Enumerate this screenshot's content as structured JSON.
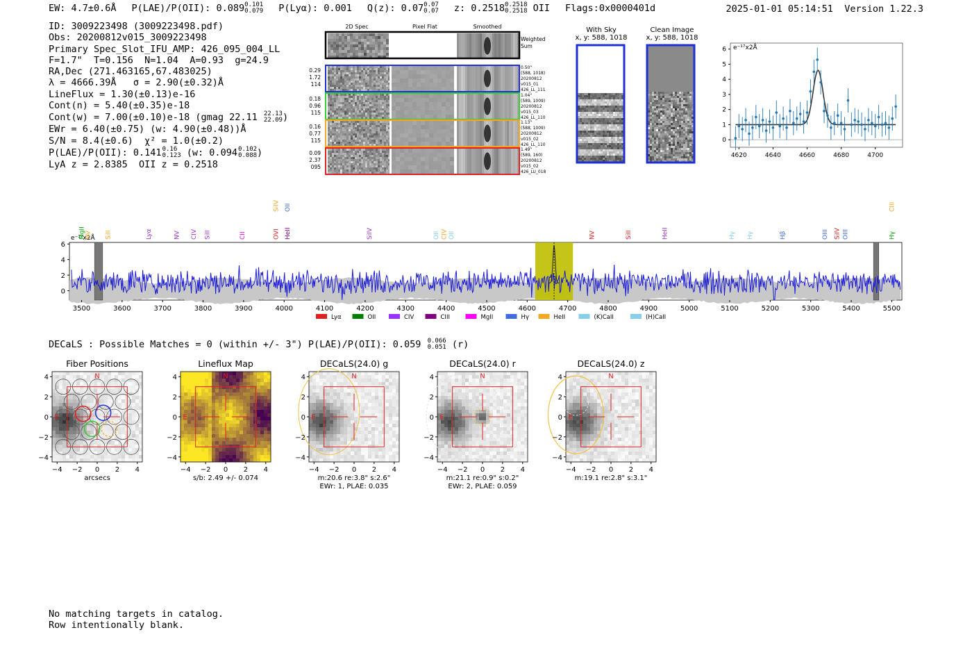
{
  "header": {
    "ew": "EW: 4.7±0.6Å",
    "plae_label": "P(LAE)/P(OII): 0.089",
    "plae_hi": "0.101",
    "plae_lo": "0.079",
    "plya": "P(Lyα): 0.001",
    "q_label": "Q(z): 0.07",
    "q_hi": "0.07",
    "q_lo": "0.07",
    "z_label": "z: 0.2518",
    "z_hi": "0.2518",
    "z_lo": "0.2518",
    "z_line": "OII",
    "flags": "Flags:0x0000401d",
    "timestamp": "2025-01-01 05:14:51",
    "version": "Version 1.22.3"
  },
  "info": {
    "id": "ID: 3009223498 (3009223498.pdf)",
    "obs": "Obs: 20200812v015_3009223498",
    "primary": "Primary Spec_Slot_IFU_AMP: 426_095_004_LL",
    "fwhm": "F=1.7\"  T=0.156  N=1.04  A=0.93  g=24.9",
    "radec": "RA,Dec (271.463165,67.483025)",
    "wave": "λ = 4666.39Å   σ = 2.90(±0.32)Å",
    "lineflux": "LineFlux = 1.30(±0.13)e-16",
    "contn": "Cont(n) = 5.40(±0.35)e-18",
    "contw": "Cont(w) = 7.00(±0.10)e-18 (gmag 22.11",
    "contw_hi": "22.13",
    "contw_lo": "22.09",
    "contw_end": ")",
    "ewr": "EWr = 6.40(±0.75) (w: 4.90(±0.48))Å",
    "sn": "S/N = 8.4(±0.6)  χ² = 1.0(±0.2)",
    "plae": "P(LAE)/P(OII): 0.141",
    "plae_hi": "0.16",
    "plae_lo": "0.123",
    "plae_w": "(w: 0.094",
    "plae_w_hi": "0.102",
    "plae_w_lo": "0.088",
    "plae_w_end": ")",
    "z": "LyA z = 2.8385  OII z = 0.2518"
  },
  "fiber_cutouts": {
    "headers": [
      "2D Spec",
      "Pixel Flat",
      "Smoothed"
    ],
    "weighted_label": "Weighted Sum",
    "rows": [
      {
        "stats": [
          "0.29",
          "1.72",
          "114"
        ],
        "info": [
          "0.50\"",
          "(588, 1018)",
          "20200812",
          "v015_01",
          "426_LL_111"
        ],
        "color": "#1f2fd6"
      },
      {
        "stats": [
          "0.18",
          "0.96",
          "115"
        ],
        "info": [
          "1.04\"",
          "(589, 1009)",
          "20200812",
          "v015_03",
          "426_LL_110"
        ],
        "color": "#33cc33"
      },
      {
        "stats": [
          "0.16",
          "0.77",
          "115"
        ],
        "info": [
          "1.13\"",
          "(588, 1009)",
          "20200812",
          "v015_02",
          "426_LL_110"
        ],
        "color": "#f5a623"
      },
      {
        "stats": [
          "0.09",
          "2.37",
          "095"
        ],
        "info": [
          "1.49\"",
          "(589, 160)",
          "20200812",
          "v015_02",
          "426_LU_018"
        ],
        "color": "#e02020"
      }
    ]
  },
  "sky": {
    "with_sky_title": "With Sky",
    "with_sky_coords": "x, y: 588, 1018",
    "clean_title": "Clean Image",
    "clean_coords": "x, y: 588, 1018"
  },
  "chart_data": [
    {
      "type": "scatter",
      "title": "",
      "ylabel_unit": "e⁻¹⁷x2Å",
      "xlim": [
        4615,
        4716
      ],
      "ylim": [
        -0.5,
        6.4
      ],
      "xticks": [
        4620,
        4640,
        4660,
        4680,
        4700
      ],
      "yticks": [
        0,
        1,
        2,
        3,
        4,
        5,
        6
      ],
      "data_x": [
        4618,
        4620,
        4622,
        4624,
        4626,
        4628,
        4630,
        4632,
        4634,
        4636,
        4638,
        4640,
        4642,
        4644,
        4646,
        4648,
        4650,
        4652,
        4654,
        4656,
        4658,
        4660,
        4662,
        4664,
        4666,
        4668,
        4670,
        4672,
        4674,
        4676,
        4678,
        4680,
        4682,
        4684,
        4686,
        4688,
        4690,
        4692,
        4694,
        4696,
        4698,
        4700,
        4702,
        4704,
        4706,
        4708,
        4710,
        4712
      ],
      "data_y": [
        0.1,
        0.9,
        0.7,
        1.3,
        0.4,
        0.8,
        1.5,
        0.9,
        1.3,
        0.6,
        1.2,
        0.8,
        1.8,
        0.9,
        1.4,
        0.8,
        1.9,
        1.1,
        1.4,
        1.7,
        1.2,
        1.8,
        3.2,
        4.5,
        5.3,
        3.8,
        1.9,
        1.6,
        0.8,
        1.1,
        1.6,
        1.1,
        0.7,
        2.6,
        1.0,
        1.3,
        1.2,
        1.0,
        0.7,
        1.3,
        1.1,
        0.9,
        1.5,
        1.0,
        1.1,
        0.8,
        1.4,
        2.2
      ],
      "error": 0.8,
      "model": {
        "type": "gaussian",
        "center": 4666.4,
        "sigma": 2.9,
        "amplitude": 3.6,
        "baseline": 1.0
      }
    },
    {
      "type": "line",
      "title": "",
      "ylabel_unit": "e⁻¹⁷x2Å",
      "xlim": [
        3470,
        5525
      ],
      "ylim": [
        -1.2,
        6.2
      ],
      "xticks": [
        3500,
        3600,
        3700,
        3800,
        3900,
        4000,
        4100,
        4200,
        4300,
        4400,
        4500,
        4600,
        4700,
        4800,
        4900,
        5000,
        5100,
        5200,
        5300,
        5400,
        5500
      ],
      "yticks": [
        0,
        2,
        4,
        6
      ],
      "highlight_band": [
        4620,
        4713
      ],
      "line_marker": 4666.4,
      "masked_bands": [
        [
          3532,
          3552
        ],
        [
          5455,
          5468
        ]
      ],
      "line_labels": [
        {
          "name": "MgII",
          "wave": 3500,
          "color": "#00a000",
          "tier": 1
        },
        {
          "name": "NV",
          "wave": 3515,
          "color": "#f5a623",
          "tier": 1
        },
        {
          "name": "SiII",
          "wave": 3565,
          "color": "#f5a623",
          "tier": 0
        },
        {
          "name": "Lyα",
          "wave": 3665,
          "color": "#9933cc",
          "tier": 0
        },
        {
          "name": "NV",
          "wave": 3735,
          "color": "#9933cc",
          "tier": 0
        },
        {
          "name": "CIV",
          "wave": 3777,
          "color": "#9933cc",
          "tier": 0
        },
        {
          "name": "SiII",
          "wave": 3810,
          "color": "#9933cc",
          "tier": 0
        },
        {
          "name": "CII",
          "wave": 3897,
          "color": "#e000e0",
          "tier": 0
        },
        {
          "name": "OVI",
          "wave": 3980,
          "color": "#e02020",
          "tier": 0
        },
        {
          "name": "SiIV",
          "wave": 3980,
          "color": "#f5a623",
          "tier": 2
        },
        {
          "name": "HeII",
          "wave": 4008,
          "color": "#800080",
          "tier": 0
        },
        {
          "name": "OII",
          "wave": 4008,
          "color": "#4169e1",
          "tier": 2
        },
        {
          "name": "SiIV",
          "wave": 4210,
          "color": "#9933cc",
          "tier": 0
        },
        {
          "name": "OII",
          "wave": 4375,
          "color": "#87ceeb",
          "tier": 0
        },
        {
          "name": "CIV",
          "wave": 4395,
          "color": "#f5a623",
          "tier": 0
        },
        {
          "name": "OII",
          "wave": 4413,
          "color": "#87ceeb",
          "tier": 0
        },
        {
          "name": "NV",
          "wave": 4760,
          "color": "#e02020",
          "tier": 0
        },
        {
          "name": "SiII",
          "wave": 4850,
          "color": "#e02020",
          "tier": 0
        },
        {
          "name": "HeII",
          "wave": 4940,
          "color": "#9933cc",
          "tier": 0
        },
        {
          "name": "Hγ",
          "wave": 5105,
          "color": "#87ceeb",
          "tier": 0
        },
        {
          "name": "Hγ",
          "wave": 5150,
          "color": "#87ceeb",
          "tier": 0
        },
        {
          "name": "Hβ",
          "wave": 5230,
          "color": "#4169e1",
          "tier": 0
        },
        {
          "name": "OIII",
          "wave": 5335,
          "color": "#4169e1",
          "tier": 0
        },
        {
          "name": "SiIV",
          "wave": 5365,
          "color": "#e02020",
          "tier": 0
        },
        {
          "name": "OIII",
          "wave": 5385,
          "color": "#4169e1",
          "tier": 0
        },
        {
          "name": "CIII",
          "wave": 5500,
          "color": "#f5a623",
          "tier": 2
        },
        {
          "name": "Hγ",
          "wave": 5500,
          "color": "#00a000",
          "tier": 0
        }
      ],
      "legend": [
        {
          "label": "Lyα",
          "color": "#e02020"
        },
        {
          "label": "OII",
          "color": "#008000"
        },
        {
          "label": "CIV",
          "color": "#9933ff"
        },
        {
          "label": "CIII",
          "color": "#800080"
        },
        {
          "label": "MgII",
          "color": "#ff00ff"
        },
        {
          "label": "Hγ",
          "color": "#4169e1"
        },
        {
          "label": "HeII",
          "color": "#f5a623"
        },
        {
          "label": "(K)CaII",
          "color": "#87ceeb"
        },
        {
          "label": "(H)CaII",
          "color": "#87ceeb"
        }
      ]
    },
    {
      "type": "heatmap",
      "panels": [
        {
          "title": "Fiber Positions",
          "caption": [
            "arcsecs"
          ],
          "kind": "fibers"
        },
        {
          "title": "Lineflux Map",
          "caption": [
            "s/b: 2.49 +/- 0.074"
          ],
          "kind": "lineflux"
        },
        {
          "title": "DECaLS(24.0) g",
          "caption": [
            "m:20.6  re:3.8\"  s:2.6\"",
            "EWr: 1, PLAE: 0.035"
          ],
          "kind": "g"
        },
        {
          "title": "DECaLS(24.0) r",
          "caption": [
            "m:21.1  re:0.9\"  s:0.2\"",
            "EWr: 2, PLAE: 0.059"
          ],
          "kind": "r"
        },
        {
          "title": "DECaLS(24.0) z",
          "caption": [
            "m:19.1  re:2.8\"  s:3.1\""
          ],
          "kind": "z"
        }
      ],
      "xticks": [
        -4,
        -2,
        0,
        2,
        4
      ],
      "yticks": [
        4,
        2,
        0,
        -2,
        -4
      ],
      "north_label": "N",
      "east_label": "E"
    }
  ],
  "decals": {
    "line": "DECaLS : Possible Matches = 0 (within +/- 3\")  P(LAE)/P(OII): 0.059",
    "hi": "0.066",
    "lo": "0.051",
    "band": "(r)"
  },
  "footer": {
    "line1": "No matching targets in catalog.",
    "line2": "Row intentionally blank."
  }
}
